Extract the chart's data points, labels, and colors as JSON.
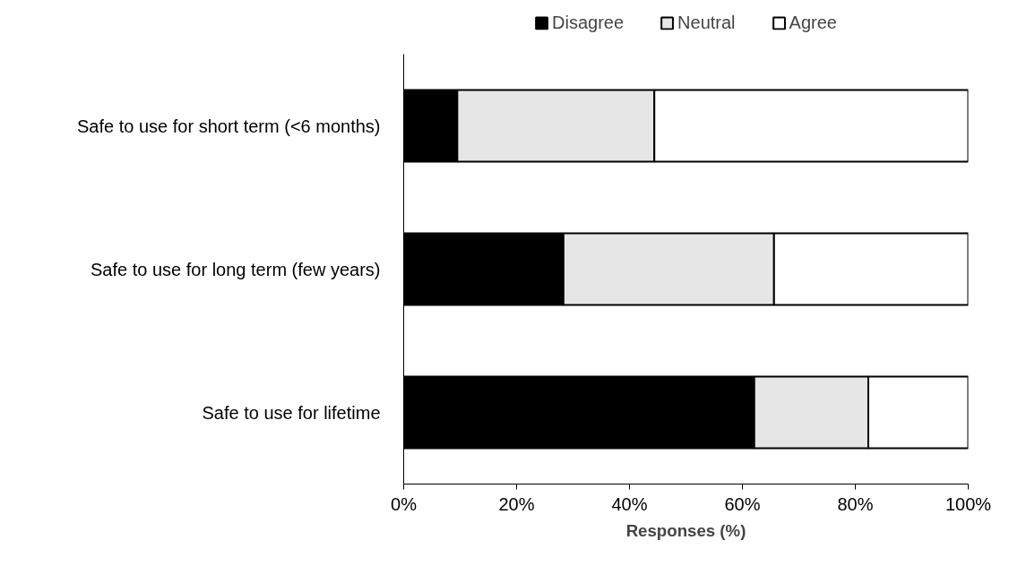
{
  "chart_data": {
    "type": "bar",
    "orientation": "horizontal",
    "stacked": true,
    "categories": [
      "Safe to use for short term (<6 months)",
      "Safe to use for long term (few years)",
      "Safe to use for lifetime"
    ],
    "series": [
      {
        "name": "Disagree",
        "color": "#000000",
        "values": [
          9.5,
          28.3,
          62.1
        ]
      },
      {
        "name": "Neutral",
        "color": "#e6e6e6",
        "values": [
          34.9,
          37.3,
          20.2
        ]
      },
      {
        "name": "Agree",
        "color": "#ffffff",
        "values": [
          55.6,
          34.4,
          17.7
        ]
      }
    ],
    "xlabel": "Responses (%)",
    "xlim": [
      0,
      100
    ],
    "xticks": [
      {
        "value": 0,
        "label": "0%"
      },
      {
        "value": 20,
        "label": "20%"
      },
      {
        "value": 40,
        "label": "40%"
      },
      {
        "value": 60,
        "label": "60%"
      },
      {
        "value": 80,
        "label": "80%"
      },
      {
        "value": 100,
        "label": "100%"
      }
    ],
    "legend": "top",
    "grid": false
  }
}
